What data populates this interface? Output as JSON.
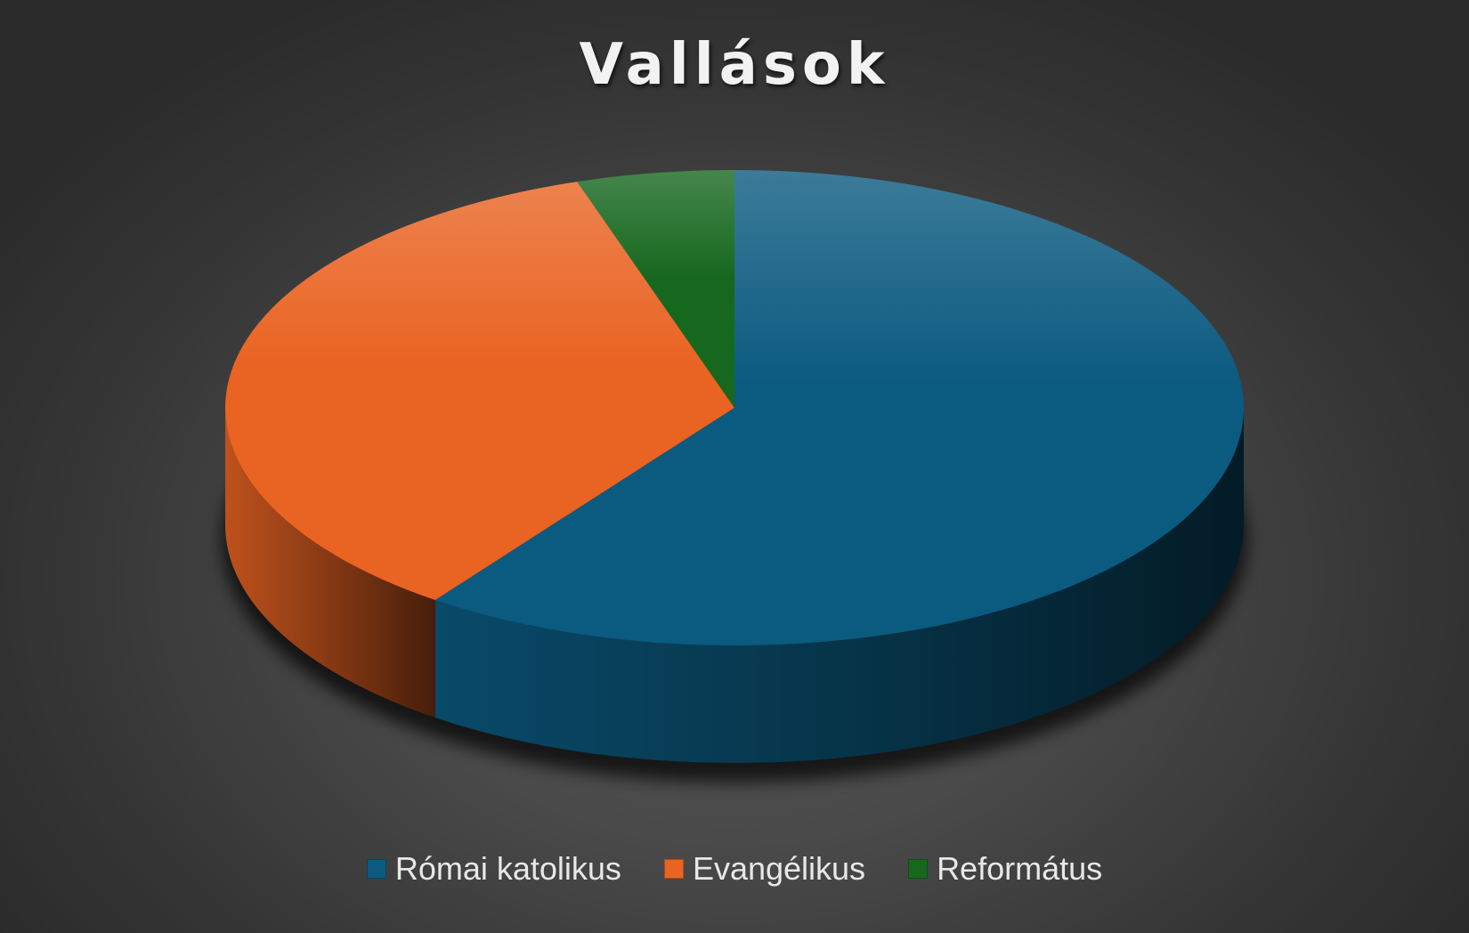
{
  "chart_data": {
    "type": "pie",
    "title": "Vallások",
    "categories": [
      "Római katolikus",
      "Evangélikus",
      "Református"
    ],
    "values": [
      60,
      35,
      5
    ],
    "colors": [
      "#0b5a80",
      "#e96322",
      "#17681f"
    ],
    "legend_position": "bottom",
    "style": "3d"
  }
}
